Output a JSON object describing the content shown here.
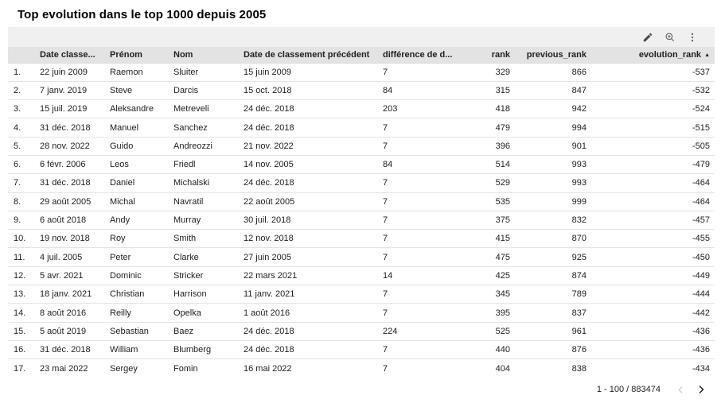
{
  "title": "Top evolution dans le top 1000 depuis 2005",
  "toolbar": {
    "icons": [
      {
        "name": "edit-pencil-icon"
      },
      {
        "name": "zoom-explore-icon"
      },
      {
        "name": "more-options-icon"
      }
    ]
  },
  "table": {
    "sort": {
      "column": "evolution_rank",
      "direction": "ascending",
      "arrow": "▲"
    },
    "columns": [
      {
        "key": "row-number",
        "label": ""
      },
      {
        "key": "date-classement",
        "label": "Date classe..."
      },
      {
        "key": "prenom",
        "label": "Prénom"
      },
      {
        "key": "nom",
        "label": "Nom"
      },
      {
        "key": "date-classement-precedent",
        "label": "Date de classement précédent"
      },
      {
        "key": "difference-de-d",
        "label": "différence de d..."
      },
      {
        "key": "rank",
        "label": "rank"
      },
      {
        "key": "previous-rank",
        "label": "previous_rank"
      },
      {
        "key": "evolution-rank",
        "label": "evolution_rank",
        "sorted": true
      }
    ],
    "rows": [
      [
        "1.",
        "22 juin 2009",
        "Raemon",
        "Sluiter",
        "15 juin 2009",
        "7",
        "329",
        "866",
        "-537"
      ],
      [
        "2.",
        "7 janv. 2019",
        "Steve",
        "Darcis",
        "15 oct. 2018",
        "84",
        "315",
        "847",
        "-532"
      ],
      [
        "3.",
        "15 juil. 2019",
        "Aleksandre",
        "Metreveli",
        "24 déc. 2018",
        "203",
        "418",
        "942",
        "-524"
      ],
      [
        "4.",
        "31 déc. 2018",
        "Manuel",
        "Sanchez",
        "24 déc. 2018",
        "7",
        "479",
        "994",
        "-515"
      ],
      [
        "5.",
        "28 nov. 2022",
        "Guido",
        "Andreozzi",
        "21 nov. 2022",
        "7",
        "396",
        "901",
        "-505"
      ],
      [
        "6.",
        "6 févr. 2006",
        "Leos",
        "Friedl",
        "14 nov. 2005",
        "84",
        "514",
        "993",
        "-479"
      ],
      [
        "7.",
        "31 déc. 2018",
        "Daniel",
        "Michalski",
        "24 déc. 2018",
        "7",
        "529",
        "993",
        "-464"
      ],
      [
        "8.",
        "29 août 2005",
        "Michal",
        "Navratil",
        "22 août 2005",
        "7",
        "535",
        "999",
        "-464"
      ],
      [
        "9.",
        "6 août 2018",
        "Andy",
        "Murray",
        "30 juil. 2018",
        "7",
        "375",
        "832",
        "-457"
      ],
      [
        "10.",
        "19 nov. 2018",
        "Roy",
        "Smith",
        "12 nov. 2018",
        "7",
        "415",
        "870",
        "-455"
      ],
      [
        "11.",
        "4 juil. 2005",
        "Peter",
        "Clarke",
        "27 juin 2005",
        "7",
        "475",
        "925",
        "-450"
      ],
      [
        "12.",
        "5 avr. 2021",
        "Dominic",
        "Stricker",
        "22 mars 2021",
        "14",
        "425",
        "874",
        "-449"
      ],
      [
        "13.",
        "18 janv. 2021",
        "Christian",
        "Harrison",
        "11 janv. 2021",
        "7",
        "345",
        "789",
        "-444"
      ],
      [
        "14.",
        "8 août 2016",
        "Reilly",
        "Opelka",
        "1 août 2016",
        "7",
        "395",
        "837",
        "-442"
      ],
      [
        "15.",
        "5 août 2019",
        "Sebastian",
        "Baez",
        "24 déc. 2018",
        "224",
        "525",
        "961",
        "-436"
      ],
      [
        "16.",
        "31 déc. 2018",
        "William",
        "Blumberg",
        "24 déc. 2018",
        "7",
        "440",
        "876",
        "-436"
      ],
      [
        "17.",
        "23 mai 2022",
        "Sergey",
        "Fomin",
        "16 mai 2022",
        "7",
        "404",
        "838",
        "-434"
      ]
    ]
  },
  "pagination": {
    "range_label": "1 - 100 / 883474",
    "prev_icon": "chevron-left-icon",
    "next_icon": "chevron-right-icon"
  },
  "colors": {
    "toolbar_bg": "#f0f0f0",
    "header_bg": "#e3e3e3",
    "row_border": "#e4e4e4",
    "text": "#202124",
    "icon": "#5f6368",
    "disabled_chevron": "#c6c6c6"
  }
}
